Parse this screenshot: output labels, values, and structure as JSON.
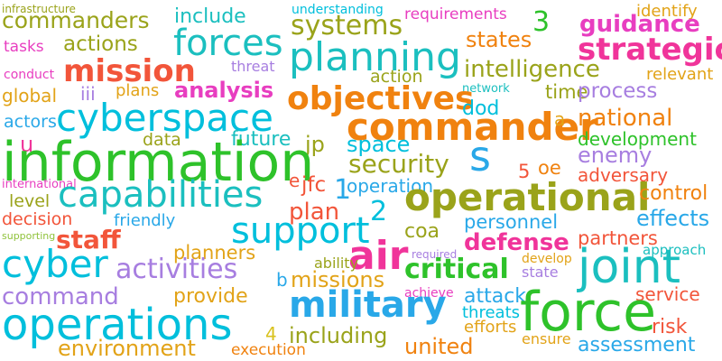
{
  "palette": {
    "olive": "#9aa31a",
    "teal": "#1bbfbf",
    "cyan": "#00bfdc",
    "orange": "#f0820f",
    "magenta": "#e83ec0",
    "pink": "#f0349a",
    "red": "#f2553a",
    "green": "#2ec22a",
    "purple": "#a77ee0",
    "sky": "#29a8e8",
    "amber": "#e2a318",
    "lime": "#8fc23a",
    "yellow": "#d9c21e"
  },
  "words": [
    {
      "text": "infrastructure",
      "color": "olive"
    },
    {
      "text": "commanders",
      "color": "olive"
    },
    {
      "text": "include",
      "color": "teal"
    },
    {
      "text": "understanding",
      "color": "cyan"
    },
    {
      "text": "requirements",
      "color": "magenta"
    },
    {
      "text": "3",
      "color": "green"
    },
    {
      "text": "identify",
      "color": "amber"
    },
    {
      "text": "systems",
      "color": "olive"
    },
    {
      "text": "guidance",
      "color": "magenta"
    },
    {
      "text": "tasks",
      "color": "magenta"
    },
    {
      "text": "actions",
      "color": "olive"
    },
    {
      "text": "forces",
      "color": "teal"
    },
    {
      "text": "states",
      "color": "orange"
    },
    {
      "text": "strategic",
      "color": "pink"
    },
    {
      "text": "planning",
      "color": "teal"
    },
    {
      "text": "conduct",
      "color": "magenta"
    },
    {
      "text": "mission",
      "color": "red"
    },
    {
      "text": "threat",
      "color": "purple"
    },
    {
      "text": "intelligence",
      "color": "olive"
    },
    {
      "text": "relevant",
      "color": "amber"
    },
    {
      "text": "action",
      "color": "olive"
    },
    {
      "text": "global",
      "color": "amber"
    },
    {
      "text": "iii",
      "color": "purple"
    },
    {
      "text": "plans",
      "color": "amber"
    },
    {
      "text": "analysis",
      "color": "magenta"
    },
    {
      "text": "network",
      "color": "teal"
    },
    {
      "text": "time",
      "color": "olive"
    },
    {
      "text": "process",
      "color": "purple"
    },
    {
      "text": "objectives",
      "color": "orange"
    },
    {
      "text": "dod",
      "color": "cyan"
    },
    {
      "text": "actors",
      "color": "sky"
    },
    {
      "text": "cyberspace",
      "color": "cyan"
    },
    {
      "text": "commander",
      "color": "orange"
    },
    {
      "text": "a",
      "color": "amber"
    },
    {
      "text": "national",
      "color": "orange"
    },
    {
      "text": "u",
      "color": "pink"
    },
    {
      "text": "data",
      "color": "olive"
    },
    {
      "text": "future",
      "color": "teal"
    },
    {
      "text": "jp",
      "color": "olive"
    },
    {
      "text": "space",
      "color": "cyan"
    },
    {
      "text": "s",
      "color": "sky"
    },
    {
      "text": "development",
      "color": "green"
    },
    {
      "text": "information",
      "color": "green"
    },
    {
      "text": "security",
      "color": "olive"
    },
    {
      "text": "enemy",
      "color": "purple"
    },
    {
      "text": "5",
      "color": "red"
    },
    {
      "text": "oe",
      "color": "orange"
    },
    {
      "text": "adversary",
      "color": "red"
    },
    {
      "text": "international",
      "color": "magenta"
    },
    {
      "text": "e",
      "color": "red"
    },
    {
      "text": "jfc",
      "color": "red"
    },
    {
      "text": "1",
      "color": "sky"
    },
    {
      "text": "operation",
      "color": "sky"
    },
    {
      "text": "level",
      "color": "olive"
    },
    {
      "text": "capabilities",
      "color": "teal"
    },
    {
      "text": "operational",
      "color": "olive"
    },
    {
      "text": "control",
      "color": "orange"
    },
    {
      "text": "decision",
      "color": "red"
    },
    {
      "text": "plan",
      "color": "red"
    },
    {
      "text": "2",
      "color": "cyan"
    },
    {
      "text": "friendly",
      "color": "sky"
    },
    {
      "text": "personnel",
      "color": "sky"
    },
    {
      "text": "effects",
      "color": "sky"
    },
    {
      "text": "staff",
      "color": "red"
    },
    {
      "text": "supporting",
      "color": "lime"
    },
    {
      "text": "support",
      "color": "cyan"
    },
    {
      "text": "coa",
      "color": "olive"
    },
    {
      "text": "defense",
      "color": "pink"
    },
    {
      "text": "partners",
      "color": "red"
    },
    {
      "text": "approach",
      "color": "teal"
    },
    {
      "text": "required",
      "color": "purple"
    },
    {
      "text": "cyber",
      "color": "cyan"
    },
    {
      "text": "planners",
      "color": "amber"
    },
    {
      "text": "air",
      "color": "pink"
    },
    {
      "text": "develop",
      "color": "amber"
    },
    {
      "text": "ability",
      "color": "olive"
    },
    {
      "text": "state",
      "color": "purple"
    },
    {
      "text": "joint",
      "color": "teal"
    },
    {
      "text": "activities",
      "color": "purple"
    },
    {
      "text": "critical",
      "color": "green"
    },
    {
      "text": "b",
      "color": "sky"
    },
    {
      "text": "missions",
      "color": "amber"
    },
    {
      "text": "achieve",
      "color": "magenta"
    },
    {
      "text": "service",
      "color": "red"
    },
    {
      "text": "command",
      "color": "purple"
    },
    {
      "text": "provide",
      "color": "amber"
    },
    {
      "text": "military",
      "color": "sky"
    },
    {
      "text": "attack",
      "color": "sky"
    },
    {
      "text": "threats",
      "color": "cyan"
    },
    {
      "text": "force",
      "color": "green"
    },
    {
      "text": "operations",
      "color": "cyan"
    },
    {
      "text": "4",
      "color": "yellow"
    },
    {
      "text": "efforts",
      "color": "amber"
    },
    {
      "text": "risk",
      "color": "red"
    },
    {
      "text": "including",
      "color": "olive"
    },
    {
      "text": "ensure",
      "color": "amber"
    },
    {
      "text": "environment",
      "color": "amber"
    },
    {
      "text": "united",
      "color": "orange"
    },
    {
      "text": "assessment",
      "color": "sky"
    },
    {
      "text": "execution",
      "color": "orange"
    }
  ]
}
